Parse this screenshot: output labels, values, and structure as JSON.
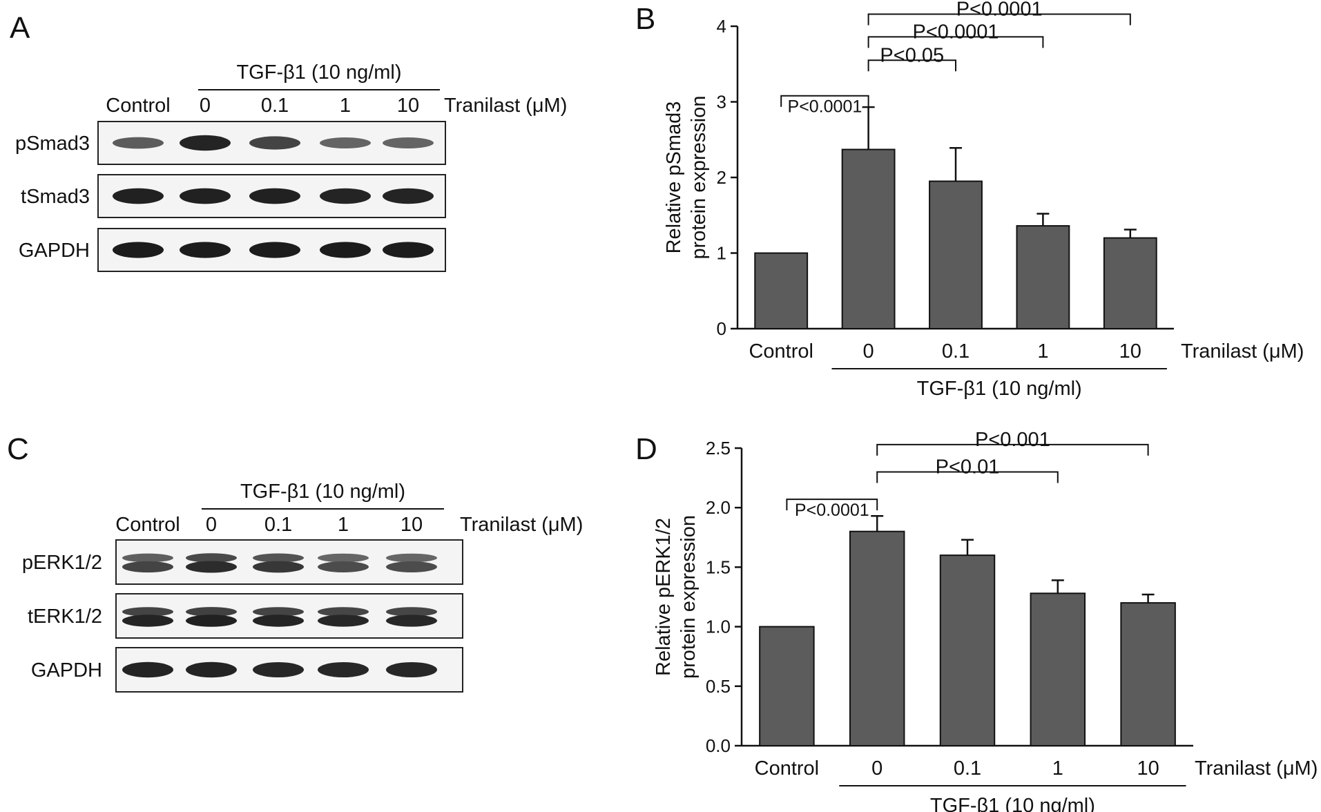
{
  "panels": {
    "A": {
      "letter": "A",
      "treatment": "TGF-β1 (10 ng/ml)",
      "dose_label": "Tranilast (μM)",
      "lanes": [
        "Control",
        "0",
        "0.1",
        "1",
        "10"
      ],
      "rows": [
        {
          "label": "pSmad3",
          "band_intensity": [
            0.55,
            0.9,
            0.7,
            0.5,
            0.5
          ],
          "double": false
        },
        {
          "label": "tSmad3",
          "band_intensity": [
            0.92,
            0.92,
            0.92,
            0.9,
            0.9
          ],
          "double": false
        },
        {
          "label": "GAPDH",
          "band_intensity": [
            0.95,
            0.95,
            0.95,
            0.95,
            0.95
          ],
          "double": false
        }
      ]
    },
    "C": {
      "letter": "C",
      "treatment": "TGF-β1 (10 ng/ml)",
      "dose_label": "Tranilast (μM)",
      "lanes": [
        "Control",
        "0",
        "0.1",
        "1",
        "10"
      ],
      "rows": [
        {
          "label": "pERK1/2",
          "band_intensity": [
            0.7,
            0.85,
            0.78,
            0.65,
            0.65
          ],
          "double": true
        },
        {
          "label": "tERK1/2",
          "band_intensity": [
            0.9,
            0.92,
            0.9,
            0.88,
            0.88
          ],
          "double": true
        },
        {
          "label": "GAPDH",
          "band_intensity": [
            0.9,
            0.9,
            0.88,
            0.88,
            0.88
          ],
          "double": false
        }
      ]
    }
  },
  "chart_data": [
    {
      "panel": "B",
      "type": "bar",
      "ylabel": [
        "Relative pSmad3",
        "protein expression"
      ],
      "xlabel": "",
      "categories": [
        "Control",
        "0",
        "0.1",
        "1",
        "10"
      ],
      "values": [
        1.0,
        2.37,
        1.95,
        1.36,
        1.2
      ],
      "errors": [
        0,
        0.56,
        0.44,
        0.16,
        0.11
      ],
      "ylim": [
        0,
        4
      ],
      "yticks": [
        "0",
        "1",
        "2",
        "3",
        "4"
      ],
      "ytick_values": [
        0,
        1,
        2,
        3,
        4
      ],
      "group_label": "TGF-β1 (10 ng/ml)",
      "dose_label": "Tranilast (μM)",
      "color": "#5c5c5c",
      "significance": [
        {
          "from": 0,
          "to": 1,
          "label": "P<0.0001",
          "y": 3.08
        },
        {
          "from": 1,
          "to": 2,
          "label": "P<0.05",
          "y": 3.55
        },
        {
          "from": 1,
          "to": 3,
          "label": "P<0.0001",
          "y": 3.86
        },
        {
          "from": 1,
          "to": 4,
          "label": "P<0.0001",
          "y": 4.16
        }
      ]
    },
    {
      "panel": "D",
      "type": "bar",
      "ylabel": [
        "Relative pERK1/2",
        "protein expression"
      ],
      "xlabel": "",
      "categories": [
        "Control",
        "0",
        "0.1",
        "1",
        "10"
      ],
      "values": [
        1.0,
        1.8,
        1.6,
        1.28,
        1.2
      ],
      "errors": [
        0,
        0.13,
        0.13,
        0.11,
        0.07
      ],
      "ylim": [
        0,
        2.5
      ],
      "yticks": [
        "0.0",
        "0.5",
        "1.0",
        "1.5",
        "2.0",
        "2.5"
      ],
      "ytick_values": [
        0,
        0.5,
        1.0,
        1.5,
        2.0,
        2.5
      ],
      "group_label": "TGF-β1 (10 ng/ml)",
      "dose_label": "Tranilast (μM)",
      "color": "#5c5c5c",
      "significance": [
        {
          "from": 0,
          "to": 1,
          "label": "P<0.0001",
          "y": 2.07
        },
        {
          "from": 1,
          "to": 3,
          "label": "P<0.01",
          "y": 2.3
        },
        {
          "from": 1,
          "to": 4,
          "label": "P<0.001",
          "y": 2.53
        }
      ]
    }
  ]
}
